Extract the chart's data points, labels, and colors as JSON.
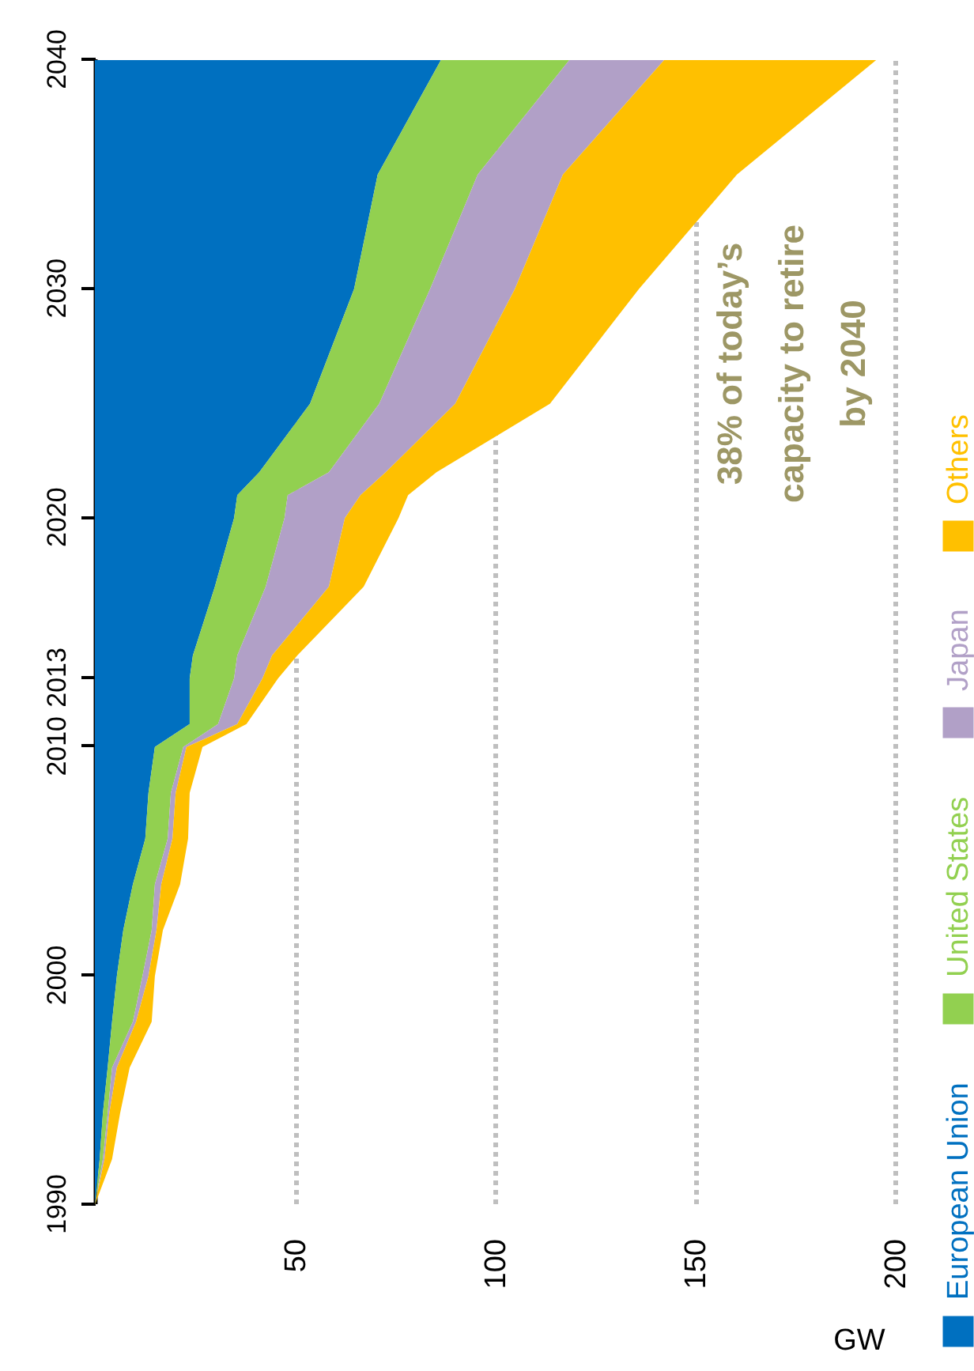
{
  "chart_data": {
    "type": "area",
    "orientation": "horizontal",
    "stacked": true,
    "xlabel": "GW",
    "legend": "right",
    "grid": "x",
    "xlim": [
      0,
      200
    ],
    "xticks": [
      50,
      100,
      150,
      200
    ],
    "ylim": [
      1990,
      2040
    ],
    "yticks": [
      1990,
      2000,
      2010,
      2013,
      2020,
      2030,
      2040
    ],
    "x": [
      1990,
      1992,
      1994,
      1996,
      1998,
      2000,
      2002,
      2004,
      2006,
      2008,
      2010,
      2011,
      2013,
      2014,
      2017,
      2020,
      2021,
      2022,
      2025,
      2030,
      2035,
      2040
    ],
    "series": [
      {
        "name": "European Union",
        "color": "#0070c0",
        "values": [
          0,
          1.2,
          2,
          3.2,
          4.3,
          5.5,
          7.1,
          9.5,
          12.6,
          13.4,
          15,
          23.7,
          23.7,
          24.5,
          30,
          34.8,
          35.6,
          41.1,
          53.8,
          64.8,
          70.7,
          86.5
        ]
      },
      {
        "name": "United States",
        "color": "#92d050",
        "values": [
          0,
          0.8,
          1.2,
          1.1,
          5.2,
          6.4,
          7.1,
          5.5,
          5.6,
          5.6,
          7.1,
          7.1,
          11.1,
          11.1,
          12.7,
          12.6,
          12.6,
          17.4,
          17.3,
          19,
          25,
          32.1
        ]
      },
      {
        "name": "Japan",
        "color": "#b1a0c7",
        "values": [
          0,
          0.4,
          0.4,
          1.2,
          0.8,
          1.5,
          1.2,
          1.6,
          1.2,
          1.2,
          0.8,
          4.8,
          7.1,
          8.7,
          15.8,
          15.1,
          18.2,
          14.2,
          19,
          21.2,
          21.3,
          23.7
        ]
      },
      {
        "name": "Others",
        "color": "#ffc000",
        "values": [
          0,
          1.9,
          2.7,
          3.2,
          3.9,
          1.6,
          1.6,
          4.7,
          3.9,
          3.5,
          4,
          2.3,
          3.9,
          6.3,
          8.7,
          13.4,
          11.9,
          12.7,
          23.7,
          31,
          43.5,
          53
        ]
      }
    ],
    "annotations": [
      "38% of today’s capacity to retire by 2040"
    ]
  }
}
